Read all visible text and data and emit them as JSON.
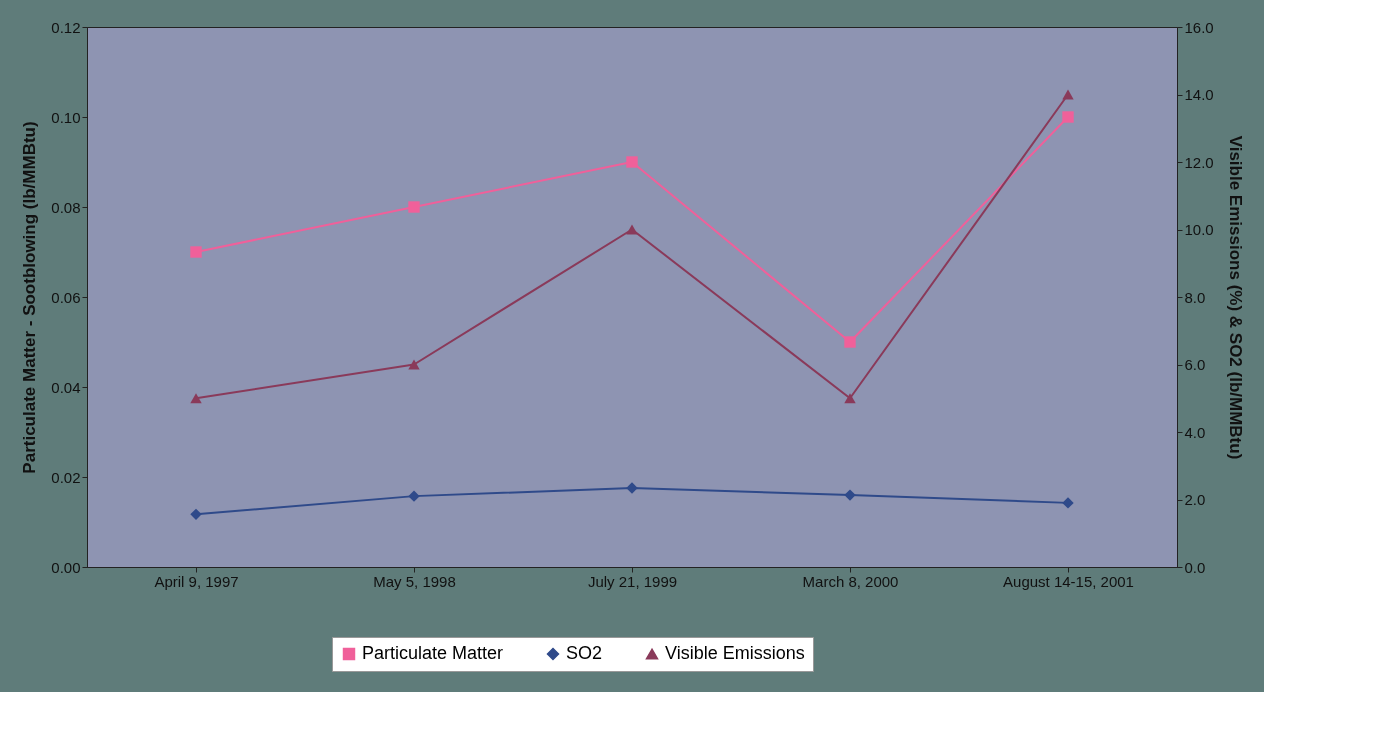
{
  "chart_data": {
    "type": "line",
    "ylabel": "Particulate Matter - Sootblowing (lb/MMBtu)",
    "y2label": "Visible Emissions (%)  & SO2 (lb/MMBtu)",
    "categories": [
      "April 9, 1997",
      "May 5, 1998",
      "July 21, 1999",
      "March 8, 2000",
      "August 14-15, 2001"
    ],
    "series": [
      {
        "name": "Particulate Matter",
        "color": "#f0609a",
        "marker": "square",
        "values": [
          0.07,
          0.08,
          0.09,
          0.05,
          0.1
        ]
      },
      {
        "name": "SO2",
        "color": "#2f4a8a",
        "marker": "diamond",
        "axis": "y2",
        "values": [
          1.56,
          2.1,
          2.34,
          2.13,
          1.9
        ]
      },
      {
        "name": "Visible Emissions",
        "color": "#8a3a5a",
        "marker": "triangle",
        "axis": "y2",
        "values": [
          5.0,
          6.0,
          10.0,
          5.0,
          14.0
        ]
      }
    ],
    "ylim": [
      0,
      0.12
    ],
    "yticks": [
      {
        "value": 0,
        "label": "0.00"
      },
      {
        "value": 0.02,
        "label": "0.02"
      },
      {
        "value": 0.04,
        "label": "0.04"
      },
      {
        "value": 0.06,
        "label": "0.06"
      },
      {
        "value": 0.08,
        "label": "0.08"
      },
      {
        "value": 0.1,
        "label": "0.10"
      },
      {
        "value": 0.12,
        "label": "0.12"
      }
    ],
    "y2lim": [
      0,
      16
    ],
    "y2ticks": [
      {
        "value": 0,
        "label": "0.0"
      },
      {
        "value": 2,
        "label": "2.0"
      },
      {
        "value": 4,
        "label": "4.0"
      },
      {
        "value": 6,
        "label": "6.0"
      },
      {
        "value": 8,
        "label": "8.0"
      },
      {
        "value": 10,
        "label": "10.0"
      },
      {
        "value": 12,
        "label": "12.0"
      },
      {
        "value": 14,
        "label": "14.0"
      },
      {
        "value": 16,
        "label": "16.0"
      }
    ],
    "grid": false,
    "legend": "bottom",
    "line_style": "solid"
  }
}
